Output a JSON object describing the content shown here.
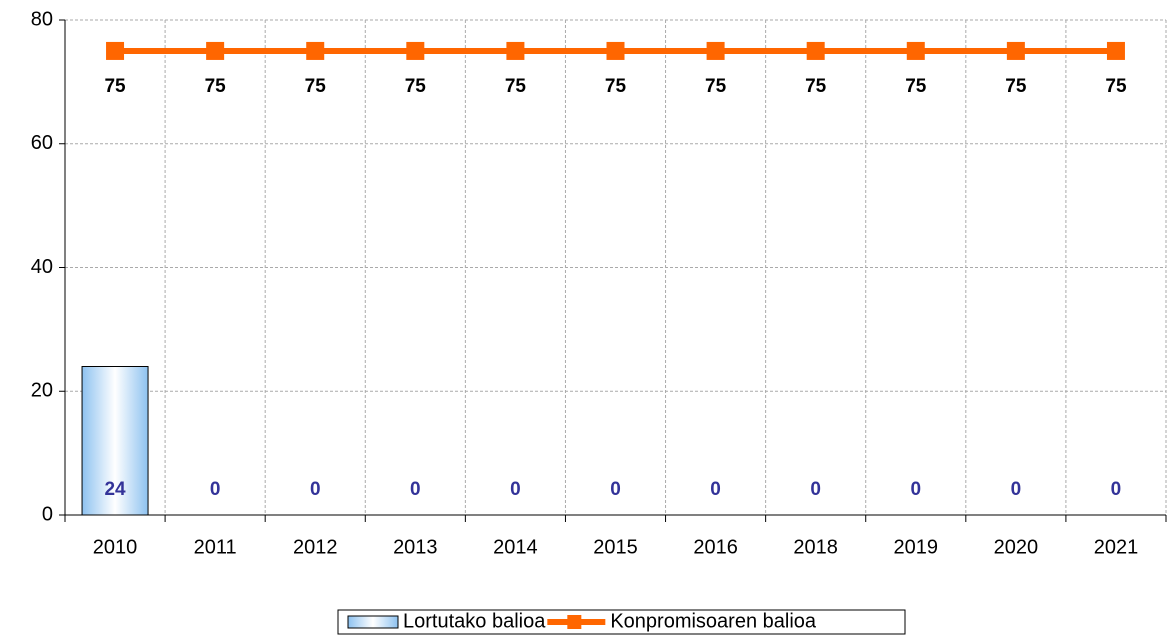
{
  "chart_data": {
    "type": "bar",
    "categories": [
      "2010",
      "2011",
      "2012",
      "2013",
      "2014",
      "2015",
      "2016",
      "2018",
      "2019",
      "2020",
      "2021"
    ],
    "series": [
      {
        "name": "Lortutako balioa",
        "type": "bar",
        "color": "#9cc8f0",
        "label_color": "#333399",
        "values": [
          24,
          0,
          0,
          0,
          0,
          0,
          0,
          0,
          0,
          0,
          0
        ]
      },
      {
        "name": "Konpromisoaren balioa",
        "type": "line",
        "color": "#ff6600",
        "label_color": "#000000",
        "values": [
          75,
          75,
          75,
          75,
          75,
          75,
          75,
          75,
          75,
          75,
          75
        ]
      }
    ],
    "ylim": [
      0,
      80
    ],
    "yticks": [
      0,
      20,
      40,
      60,
      80
    ],
    "grid": true,
    "legend": "bottom"
  }
}
